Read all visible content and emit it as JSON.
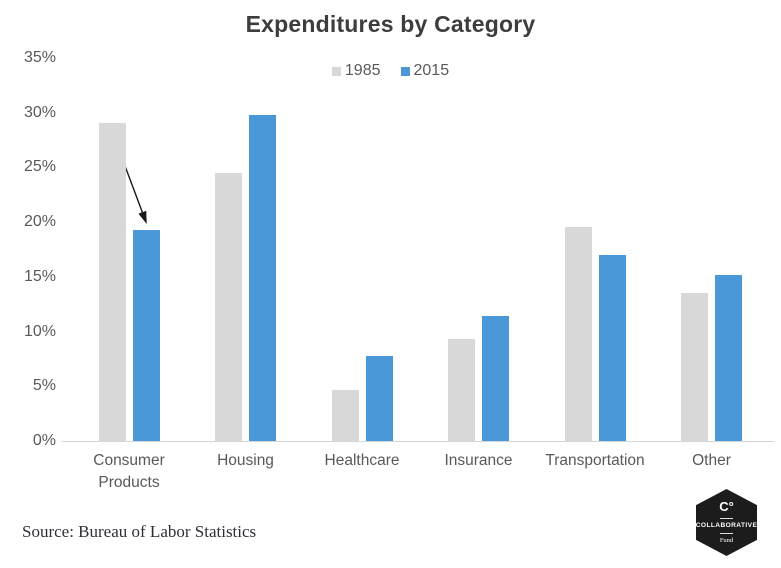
{
  "title": "Expenditures by Category",
  "source": "Source: Bureau of Labor Statistics",
  "colors": {
    "series_1985": "#d8d8d8",
    "series_2015": "#4a98d8",
    "axis_text": "#595959",
    "title_text": "#3d3d3d",
    "baseline": "#d6d6d6",
    "annotation_arrow": "#1a1a1a",
    "logo_background": "#1c1c1c"
  },
  "logo": {
    "mark": "C°",
    "name": "COLLABORATIVE",
    "sub": "Fund"
  },
  "chart_data": {
    "type": "bar",
    "title": "Expenditures by Category",
    "categories": [
      "Consumer Products",
      "Housing",
      "Healthcare",
      "Insurance",
      "Transportation",
      "Other"
    ],
    "series": [
      {
        "name": "1985",
        "color": "#d8d8d8",
        "values": [
          29.1,
          24.5,
          4.7,
          9.3,
          19.6,
          13.5
        ]
      },
      {
        "name": "2015",
        "color": "#4a98d8",
        "values": [
          19.3,
          29.8,
          7.8,
          11.4,
          17.0,
          15.2
        ]
      }
    ],
    "xlabel": "",
    "ylabel": "",
    "ylim": [
      0,
      35
    ],
    "yticks": [
      "0%",
      "5%",
      "10%",
      "15%",
      "20%",
      "25%",
      "30%",
      "35%"
    ],
    "grid": false,
    "legend_position": "top-center",
    "annotations": [
      {
        "type": "arrow",
        "description": "arrow pointing from top of 1985 Consumer Products bar down to 2015 Consumer Products bar",
        "from_value": 29.1,
        "to_value": 19.3,
        "category": "Consumer Products"
      }
    ]
  }
}
